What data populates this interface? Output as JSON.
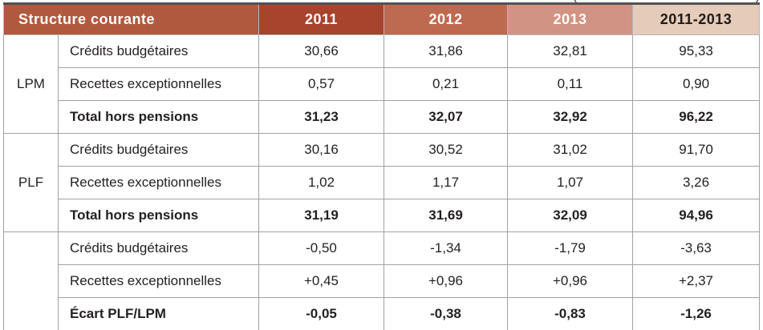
{
  "caption_clipped": {
    "left_paren": "(",
    "right_paren": ")"
  },
  "colors": {
    "header_structure_bg": "#b1593f",
    "header_2011_bg": "#a8432e",
    "header_2012_bg": "#bd6a51",
    "header_2013_bg": "#d09384",
    "header_range_bg": "#e5cbb9",
    "header_text": "#ffffff",
    "header_range_text": "#1e1a17",
    "grid_line": "#9fa1a4",
    "outer_top_border": "#515254",
    "body_text": "#231f20"
  },
  "table": {
    "header": [
      "Structure courante",
      "2011",
      "2012",
      "2013",
      "2011-2013"
    ],
    "groups": [
      {
        "label": "LPM",
        "rows": [
          {
            "label": "Crédits budgétaires",
            "values": [
              "30,66",
              "31,86",
              "32,81",
              "95,33"
            ],
            "bold": false
          },
          {
            "label": "Recettes exceptionnelles",
            "values": [
              "0,57",
              "0,21",
              "0,11",
              "0,90"
            ],
            "bold": false
          },
          {
            "label": "Total hors pensions",
            "values": [
              "31,23",
              "32,07",
              "32,92",
              "96,22"
            ],
            "bold": true
          }
        ]
      },
      {
        "label": "PLF",
        "rows": [
          {
            "label": "Crédits budgétaires",
            "values": [
              "30,16",
              "30,52",
              "31,02",
              "91,70"
            ],
            "bold": false
          },
          {
            "label": "Recettes exceptionnelles",
            "values": [
              "1,02",
              "1,17",
              "1,07",
              "3,26"
            ],
            "bold": false
          },
          {
            "label": "Total hors pensions",
            "values": [
              "31,19",
              "31,69",
              "32,09",
              "94,96"
            ],
            "bold": true
          }
        ]
      },
      {
        "label": "",
        "rows": [
          {
            "label": "Crédits budgétaires",
            "values": [
              "-0,50",
              "-1,34",
              "-1,79",
              "-3,63"
            ],
            "bold": false
          },
          {
            "label": "Recettes exceptionnelles",
            "values": [
              "+0,45",
              "+0,96",
              "+0,96",
              "+2,37"
            ],
            "bold": false
          },
          {
            "label": "Écart PLF/LPM",
            "values": [
              "-0,05",
              "-0,38",
              "-0,83",
              "-1,26"
            ],
            "bold": true
          }
        ]
      }
    ]
  }
}
